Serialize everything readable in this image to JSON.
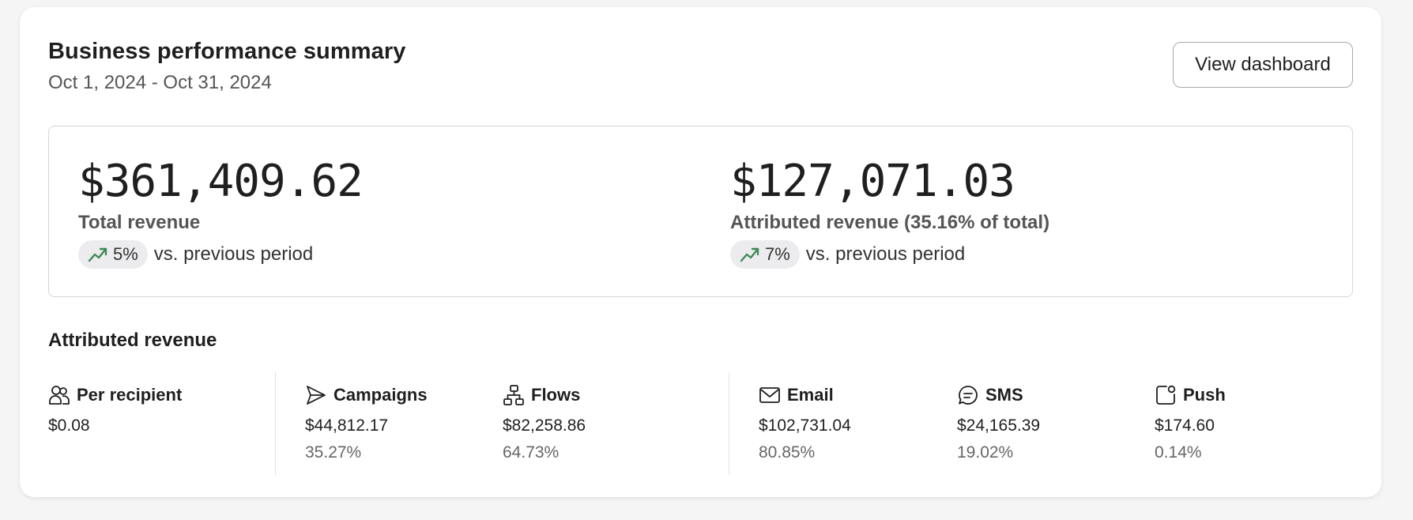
{
  "header": {
    "title": "Business performance summary",
    "date_range": "Oct 1, 2024 - Oct 31, 2024",
    "view_button_label": "View dashboard"
  },
  "summary": {
    "total": {
      "value": "$361,409.62",
      "label": "Total revenue",
      "delta": "5%",
      "delta_suffix": "vs. previous period",
      "trend_icon": "trending-up-icon"
    },
    "attributed": {
      "value": "$127,071.03",
      "label": "Attributed revenue (35.16% of total)",
      "delta": "7%",
      "delta_suffix": "vs. previous period",
      "trend_icon": "trending-up-icon"
    }
  },
  "attributed_section": {
    "title": "Attributed revenue",
    "per_recipient": {
      "label": "Per recipient",
      "value": "$0.08",
      "icon": "users-icon"
    },
    "campaigns": {
      "label": "Campaigns",
      "value": "$44,812.17",
      "percent": "35.27%",
      "icon": "send-icon"
    },
    "flows": {
      "label": "Flows",
      "value": "$82,258.86",
      "percent": "64.73%",
      "icon": "flow-icon"
    },
    "email": {
      "label": "Email",
      "value": "$102,731.04",
      "percent": "80.85%",
      "icon": "mail-icon"
    },
    "sms": {
      "label": "SMS",
      "value": "$24,165.39",
      "percent": "19.02%",
      "icon": "message-icon"
    },
    "push": {
      "label": "Push",
      "value": "$174.60",
      "percent": "0.14%",
      "icon": "push-notification-icon"
    }
  },
  "colors": {
    "trend_up": "#3d8a57",
    "badge_bg": "#ececee",
    "card_bg": "#ffffff",
    "page_bg": "#f5f5f6"
  }
}
